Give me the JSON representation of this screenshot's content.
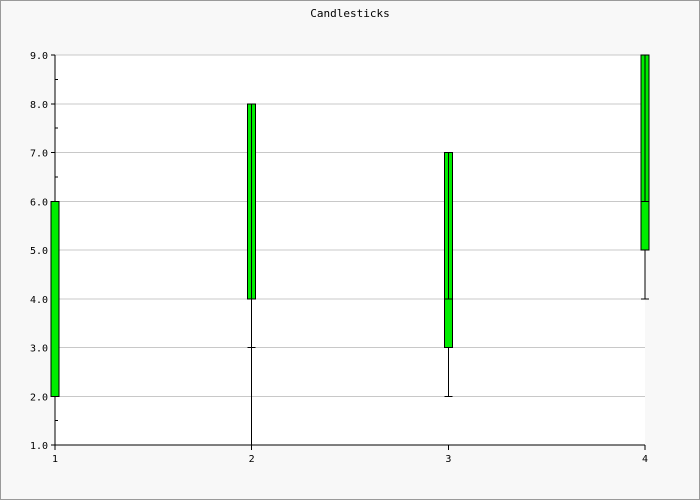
{
  "chart_data": {
    "type": "candlestick",
    "title": "Candlesticks",
    "xlabel": "",
    "ylabel": "",
    "x": [
      1,
      2,
      3,
      4
    ],
    "x_tick_labels": [
      "1",
      "2",
      "3",
      "4"
    ],
    "y_tick_labels": [
      "1.0",
      "2.0",
      "3.0",
      "4.0",
      "5.0",
      "6.0",
      "7.0",
      "8.0",
      "9.0"
    ],
    "xlim": [
      1,
      4
    ],
    "ylim": [
      1,
      9
    ],
    "grid": true,
    "legend": "none",
    "candles": [
      {
        "x": 1,
        "open": 2,
        "high": 6,
        "low": 2,
        "close": 6,
        "mid": 6
      },
      {
        "x": 2,
        "open": 4,
        "high": 8,
        "low": 1,
        "close": 8,
        "mid": 3
      },
      {
        "x": 3,
        "open": 3,
        "high": 7,
        "low": 2,
        "close": 7,
        "mid": 4
      },
      {
        "x": 4,
        "open": 5,
        "high": 9,
        "low": 4,
        "close": 9,
        "mid": 6
      }
    ],
    "colors": {
      "candle_fill": "#00ee00",
      "candle_stroke": "#000000",
      "grid": "#c8c8c8",
      "background": "#f8f8f8",
      "plot_background": "#ffffff"
    }
  }
}
